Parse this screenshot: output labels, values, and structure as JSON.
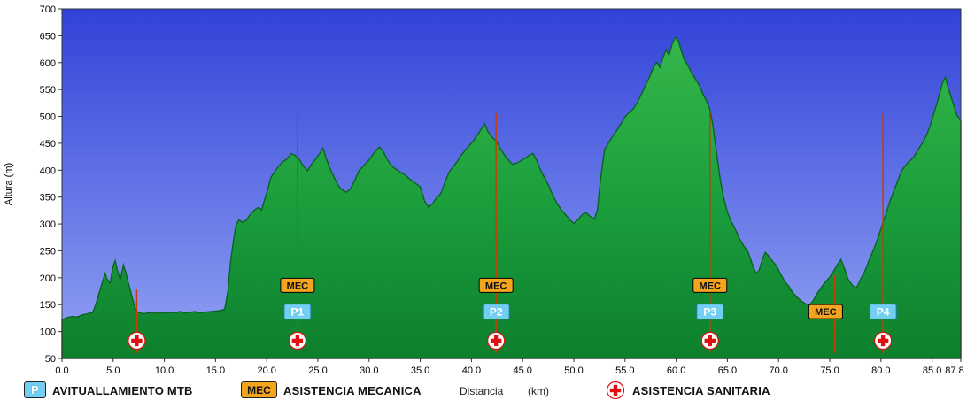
{
  "chart_data": {
    "type": "area",
    "title": "",
    "xlabel": "Distancia (km)",
    "ylabel": "Altura (m)",
    "xlim": [
      0,
      87.8
    ],
    "ylim": [
      50,
      700
    ],
    "grid": false,
    "x_ticks": [
      0,
      5,
      10,
      15,
      20,
      25,
      30,
      35,
      40,
      45,
      50,
      55,
      60,
      65,
      70,
      75,
      80,
      85,
      87.8
    ],
    "x_tick_labels": [
      "0.0",
      "5.0",
      "10.0",
      "15.0",
      "20.0",
      "25.0",
      "30.0",
      "35.0",
      "40.0",
      "45.0",
      "50.0",
      "55.0",
      "60.0",
      "65.0",
      "70.0",
      "75.0",
      "80.0",
      "85.0",
      "87.8"
    ],
    "y_ticks": [
      50,
      100,
      150,
      200,
      250,
      300,
      350,
      400,
      450,
      500,
      550,
      600,
      650,
      700
    ],
    "profile": [
      [
        0,
        122
      ],
      [
        0.5,
        126
      ],
      [
        1,
        128
      ],
      [
        1.5,
        127
      ],
      [
        2,
        131
      ],
      [
        2.5,
        133
      ],
      [
        3,
        136
      ],
      [
        3.3,
        150
      ],
      [
        3.6,
        170
      ],
      [
        4,
        195
      ],
      [
        4.2,
        208
      ],
      [
        4.4,
        198
      ],
      [
        4.7,
        190
      ],
      [
        5,
        222
      ],
      [
        5.2,
        232
      ],
      [
        5.4,
        215
      ],
      [
        5.7,
        196
      ],
      [
        6,
        224
      ],
      [
        6.2,
        212
      ],
      [
        6.5,
        190
      ],
      [
        6.8,
        168
      ],
      [
        7.1,
        146
      ],
      [
        7.4,
        136
      ],
      [
        8,
        133
      ],
      [
        8.5,
        135
      ],
      [
        9,
        134
      ],
      [
        9.5,
        136
      ],
      [
        10,
        134
      ],
      [
        10.5,
        136
      ],
      [
        11,
        135
      ],
      [
        11.5,
        137
      ],
      [
        12,
        135
      ],
      [
        12.5,
        136
      ],
      [
        13,
        137
      ],
      [
        13.5,
        135
      ],
      [
        14,
        136
      ],
      [
        14.5,
        137
      ],
      [
        15,
        138
      ],
      [
        15.5,
        139
      ],
      [
        15.9,
        142
      ],
      [
        16.2,
        175
      ],
      [
        16.5,
        235
      ],
      [
        16.8,
        275
      ],
      [
        17,
        298
      ],
      [
        17.3,
        308
      ],
      [
        17.6,
        303
      ],
      [
        18,
        307
      ],
      [
        18.4,
        318
      ],
      [
        18.8,
        326
      ],
      [
        19.2,
        331
      ],
      [
        19.5,
        326
      ],
      [
        20,
        358
      ],
      [
        20.4,
        386
      ],
      [
        20.8,
        398
      ],
      [
        21.2,
        408
      ],
      [
        21.6,
        416
      ],
      [
        22,
        421
      ],
      [
        22.4,
        431
      ],
      [
        22.8,
        427
      ],
      [
        23.2,
        419
      ],
      [
        23.6,
        407
      ],
      [
        24,
        399
      ],
      [
        24.4,
        412
      ],
      [
        24.8,
        421
      ],
      [
        25.2,
        432
      ],
      [
        25.5,
        441
      ],
      [
        25.8,
        422
      ],
      [
        26.2,
        402
      ],
      [
        26.6,
        386
      ],
      [
        27,
        371
      ],
      [
        27.4,
        363
      ],
      [
        27.8,
        359
      ],
      [
        28.2,
        366
      ],
      [
        28.6,
        381
      ],
      [
        29,
        399
      ],
      [
        29.5,
        409
      ],
      [
        30,
        419
      ],
      [
        30.5,
        433
      ],
      [
        31,
        443
      ],
      [
        31.4,
        434
      ],
      [
        31.8,
        419
      ],
      [
        32.2,
        408
      ],
      [
        32.6,
        402
      ],
      [
        33,
        397
      ],
      [
        33.5,
        391
      ],
      [
        34,
        383
      ],
      [
        34.5,
        376
      ],
      [
        35,
        369
      ],
      [
        35.4,
        344
      ],
      [
        35.8,
        331
      ],
      [
        36.2,
        338
      ],
      [
        36.6,
        349
      ],
      [
        37,
        356
      ],
      [
        37.4,
        377
      ],
      [
        37.8,
        396
      ],
      [
        38.2,
        406
      ],
      [
        38.6,
        416
      ],
      [
        39,
        428
      ],
      [
        39.4,
        437
      ],
      [
        39.8,
        446
      ],
      [
        40.2,
        455
      ],
      [
        40.6,
        466
      ],
      [
        41,
        478
      ],
      [
        41.3,
        486
      ],
      [
        41.6,
        472
      ],
      [
        42,
        461
      ],
      [
        42.4,
        455
      ],
      [
        42.8,
        441
      ],
      [
        43.2,
        429
      ],
      [
        43.6,
        419
      ],
      [
        44,
        411
      ],
      [
        44.4,
        413
      ],
      [
        44.8,
        417
      ],
      [
        45.2,
        422
      ],
      [
        45.6,
        427
      ],
      [
        46,
        431
      ],
      [
        46.4,
        417
      ],
      [
        46.8,
        398
      ],
      [
        47.2,
        384
      ],
      [
        47.6,
        369
      ],
      [
        48,
        351
      ],
      [
        48.4,
        337
      ],
      [
        48.8,
        326
      ],
      [
        49.2,
        317
      ],
      [
        49.6,
        308
      ],
      [
        50,
        301
      ],
      [
        50.4,
        308
      ],
      [
        50.8,
        317
      ],
      [
        51.2,
        321
      ],
      [
        51.6,
        314
      ],
      [
        52,
        309
      ],
      [
        52.3,
        326
      ],
      [
        52.6,
        382
      ],
      [
        53,
        438
      ],
      [
        53.4,
        451
      ],
      [
        53.8,
        463
      ],
      [
        54.2,
        474
      ],
      [
        54.6,
        486
      ],
      [
        55,
        499
      ],
      [
        55.4,
        507
      ],
      [
        55.8,
        514
      ],
      [
        56.2,
        526
      ],
      [
        56.6,
        541
      ],
      [
        57,
        558
      ],
      [
        57.4,
        574
      ],
      [
        57.8,
        592
      ],
      [
        58.1,
        601
      ],
      [
        58.4,
        591
      ],
      [
        58.7,
        609
      ],
      [
        59,
        624
      ],
      [
        59.3,
        614
      ],
      [
        59.6,
        634
      ],
      [
        59.9,
        647
      ],
      [
        60.2,
        641
      ],
      [
        60.5,
        622
      ],
      [
        60.8,
        605
      ],
      [
        61.1,
        596
      ],
      [
        61.5,
        581
      ],
      [
        62,
        566
      ],
      [
        62.3,
        556
      ],
      [
        62.6,
        542
      ],
      [
        63,
        527
      ],
      [
        63.3,
        512
      ],
      [
        63.6,
        482
      ],
      [
        64,
        423
      ],
      [
        64.3,
        383
      ],
      [
        64.6,
        352
      ],
      [
        65,
        322
      ],
      [
        65.4,
        304
      ],
      [
        65.8,
        289
      ],
      [
        66.2,
        272
      ],
      [
        66.6,
        259
      ],
      [
        67,
        249
      ],
      [
        67.4,
        227
      ],
      [
        67.8,
        208
      ],
      [
        68.1,
        214
      ],
      [
        68.4,
        233
      ],
      [
        68.7,
        247
      ],
      [
        69,
        241
      ],
      [
        69.4,
        231
      ],
      [
        69.8,
        222
      ],
      [
        70.2,
        207
      ],
      [
        70.6,
        193
      ],
      [
        71,
        184
      ],
      [
        71.4,
        172
      ],
      [
        71.8,
        164
      ],
      [
        72.2,
        157
      ],
      [
        72.6,
        152
      ],
      [
        73,
        149
      ],
      [
        73.4,
        158
      ],
      [
        73.8,
        172
      ],
      [
        74.2,
        183
      ],
      [
        74.6,
        193
      ],
      [
        75,
        201
      ],
      [
        75.4,
        213
      ],
      [
        75.8,
        226
      ],
      [
        76.1,
        234
      ],
      [
        76.4,
        219
      ],
      [
        76.8,
        197
      ],
      [
        77.2,
        186
      ],
      [
        77.6,
        181
      ],
      [
        78,
        197
      ],
      [
        78.4,
        211
      ],
      [
        78.8,
        231
      ],
      [
        79.2,
        249
      ],
      [
        79.6,
        268
      ],
      [
        80,
        291
      ],
      [
        80.4,
        314
      ],
      [
        80.8,
        338
      ],
      [
        81.2,
        359
      ],
      [
        81.6,
        378
      ],
      [
        82,
        398
      ],
      [
        82.4,
        409
      ],
      [
        82.8,
        417
      ],
      [
        83.2,
        424
      ],
      [
        83.6,
        437
      ],
      [
        84,
        449
      ],
      [
        84.4,
        463
      ],
      [
        84.8,
        482
      ],
      [
        85.2,
        508
      ],
      [
        85.5,
        526
      ],
      [
        85.8,
        548
      ],
      [
        86.1,
        567
      ],
      [
        86.3,
        573
      ],
      [
        86.6,
        551
      ],
      [
        87,
        527
      ],
      [
        87.4,
        503
      ],
      [
        87.8,
        491
      ]
    ],
    "markers": {
      "line_bottom": 60,
      "lines": [
        {
          "km": 7.3,
          "top": 178
        },
        {
          "km": 23.0,
          "top": 506
        },
        {
          "km": 42.4,
          "top": 506
        },
        {
          "km": 63.3,
          "top": 506
        },
        {
          "km": 75.5,
          "top": 205
        },
        {
          "km": 80.2,
          "top": 506
        }
      ],
      "mec_label": "MEC",
      "mec": [
        {
          "km": 23.0,
          "elev": 186
        },
        {
          "km": 42.4,
          "elev": 186
        },
        {
          "km": 63.3,
          "elev": 186
        },
        {
          "km": 74.6,
          "elev": 137
        }
      ],
      "p": [
        {
          "km": 23.0,
          "label": "P1",
          "elev": 137
        },
        {
          "km": 42.4,
          "label": "P2",
          "elev": 137
        },
        {
          "km": 63.3,
          "label": "P3",
          "elev": 137
        },
        {
          "km": 80.2,
          "label": "P4",
          "elev": 137
        }
      ],
      "cross": [
        7.3,
        23.0,
        42.4,
        63.3,
        80.2
      ],
      "cross_elev": 83
    },
    "colors": {
      "bg_top": "#3142d8",
      "bg_bottom": "#93a3f4",
      "fill_top": "#35b74b",
      "fill_mid": "#1a9c3c",
      "fill_bottom": "#0d7f2c",
      "profile_stroke": "#0a6322",
      "marker_line": "#cc3c00",
      "mec_bg": "#f5a41e",
      "mec_border": "#000000",
      "p_bg": "#72cff2",
      "p_border": "#2277aa",
      "p_text": "#ffffff",
      "cross_red": "#dd1111",
      "axis": "#333333",
      "tick_text": "#000000"
    }
  },
  "legend": {
    "p_symbol": "P",
    "p_label": "AVITUALLAMIENTO MTB",
    "mec_symbol": "MEC",
    "mec_label": "ASISTENCIA MECANICA",
    "distance_label": "Distancia",
    "distance_unit": "(km)",
    "cross_label": "ASISTENCIA SANITARIA"
  }
}
